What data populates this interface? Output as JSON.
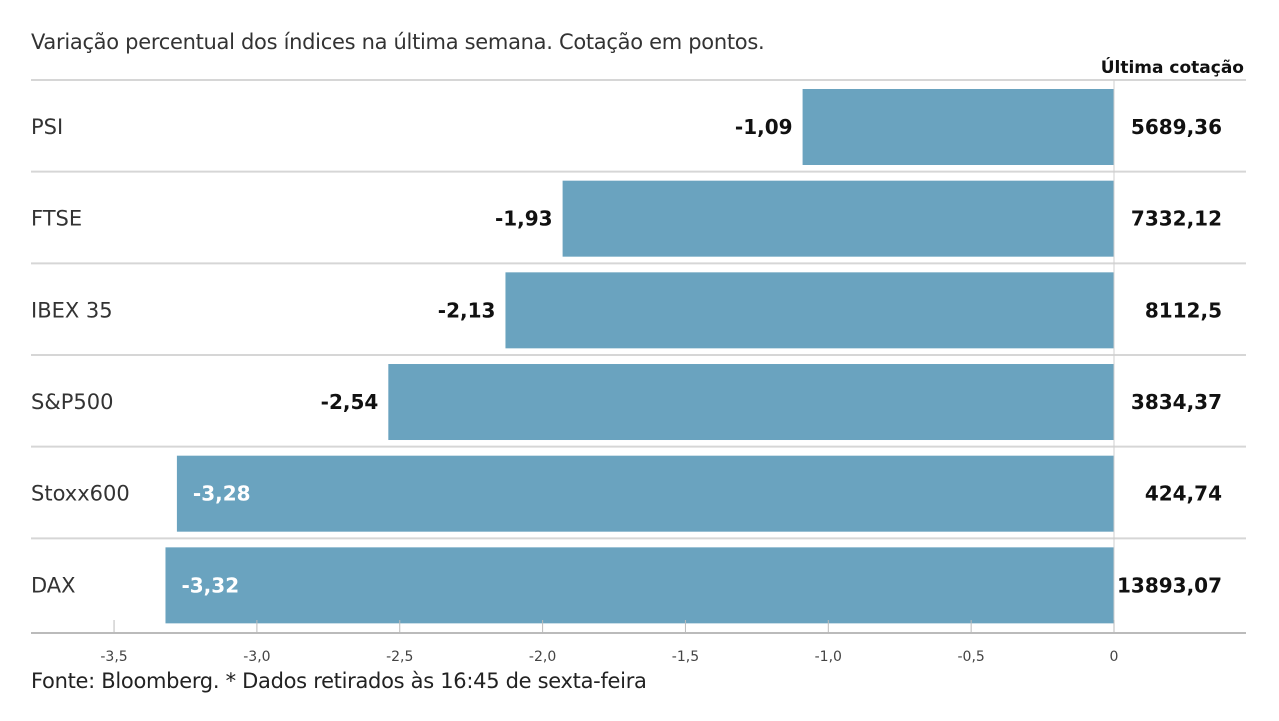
{
  "subtitle": "Variação percentual dos índices na última semana. Cotação em pontos.",
  "footnote": "Fonte: Bloomberg.  * Dados retirados às 16:45 de sexta-feira",
  "chart_data": {
    "type": "bar",
    "orientation": "horizontal",
    "categories": [
      "PSI",
      "FTSE",
      "IBEX 35",
      "S&P500",
      "Stoxx600",
      "DAX"
    ],
    "values": [
      -1.09,
      -1.93,
      -2.13,
      -2.54,
      -3.28,
      -3.32
    ],
    "value_labels": [
      "-1,09",
      "-1,93",
      "-2,13",
      "-2,54",
      "-3,28",
      "-3,32"
    ],
    "last_quote_header": "Última cotação",
    "last_quotes": [
      "5689,36",
      "7332,12",
      "8112,5",
      "3834,37",
      "424,74",
      "13893,07"
    ],
    "xlim": [
      -3.5,
      0
    ],
    "xticks": [
      -3.5,
      -3.0,
      -2.5,
      -2.0,
      -1.5,
      -1.0,
      -0.5,
      0
    ],
    "xtick_labels": [
      "-3,5",
      "-3,0",
      "-2,5",
      "-2,0",
      "-1,5",
      "-1,0",
      "-0,5",
      "0"
    ],
    "bar_color": "#6aa3bf",
    "grid": false,
    "legend": "none"
  }
}
